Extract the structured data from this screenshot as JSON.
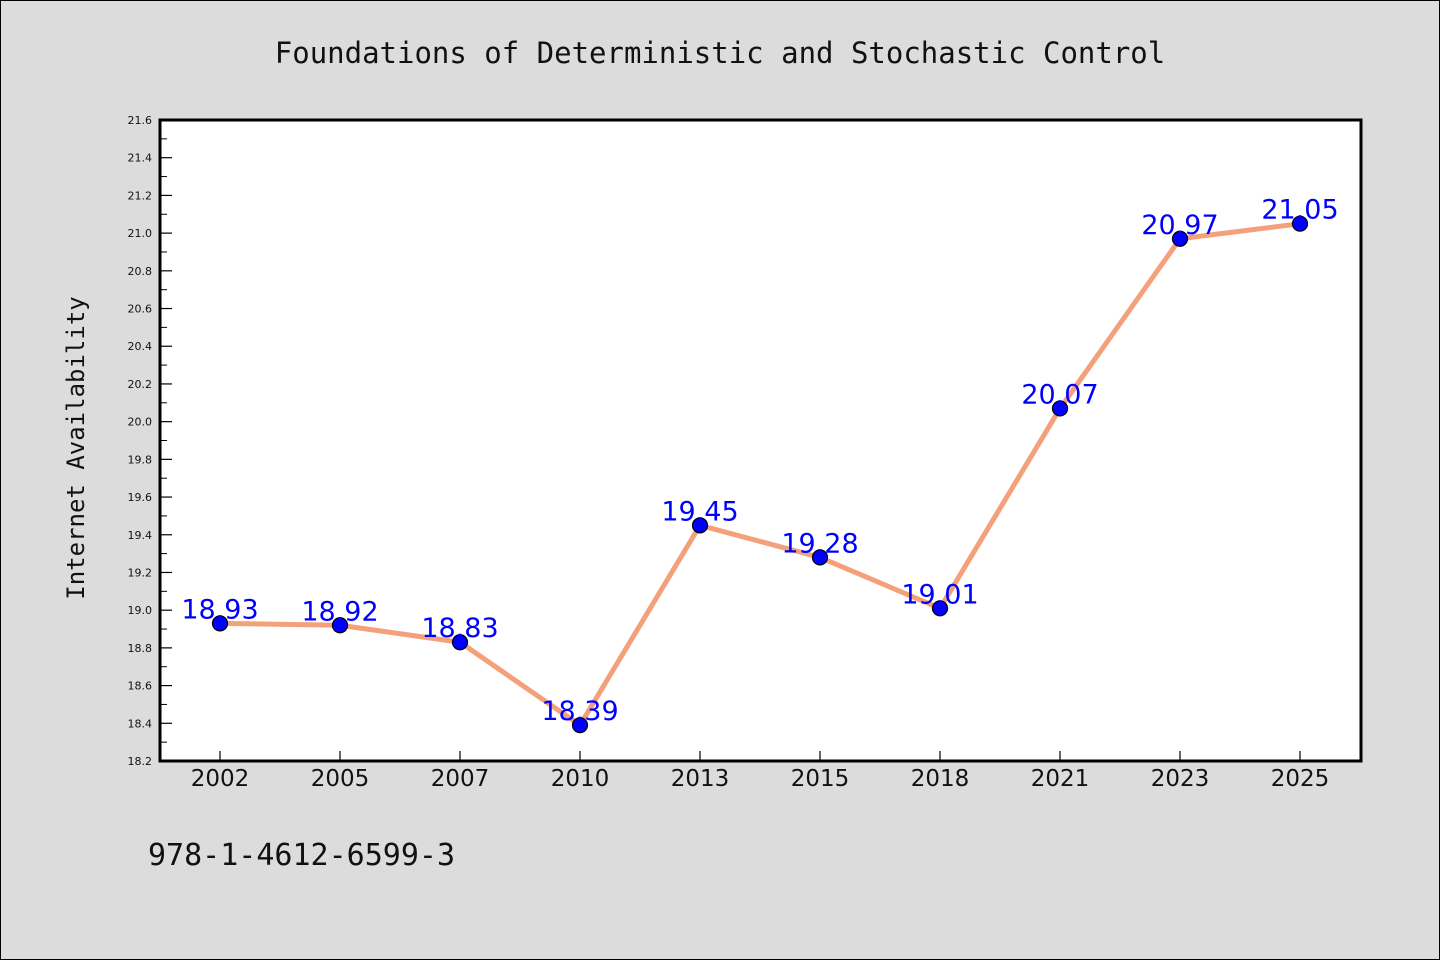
{
  "chart_data": {
    "type": "line",
    "title": "Foundations of Deterministic and Stochastic Control",
    "xlabel": "",
    "ylabel": "Internet Availability",
    "categories": [
      "2002",
      "2005",
      "2007",
      "2010",
      "2013",
      "2015",
      "2018",
      "2021",
      "2023",
      "2025"
    ],
    "series": [
      {
        "values": [
          18.93,
          18.92,
          18.83,
          18.39,
          19.45,
          19.28,
          19.01,
          20.07,
          20.97,
          21.05
        ]
      }
    ],
    "data_labels": [
      "18.93",
      "18.92",
      "18.83",
      "18.39",
      "19.45",
      "19.28",
      "19.01",
      "20.07",
      "20.97",
      "21.05"
    ],
    "ylim": [
      18.2,
      21.6
    ],
    "yticks": [
      "18.2",
      "18.4",
      "18.6",
      "18.8",
      "19.0",
      "19.2",
      "19.4",
      "19.6",
      "19.8",
      "20.0",
      "20.2",
      "20.4",
      "20.6",
      "20.8",
      "21.0",
      "21.2",
      "21.4",
      "21.6"
    ],
    "grid": false,
    "legend": "none",
    "colors": {
      "line": "#f4a07a",
      "marker": "#0000ff",
      "label": "#0000ff",
      "background": "#dcdcdc",
      "plot_bg": "#ffffff"
    }
  },
  "footer_text": "978-1-4612-6599-3"
}
